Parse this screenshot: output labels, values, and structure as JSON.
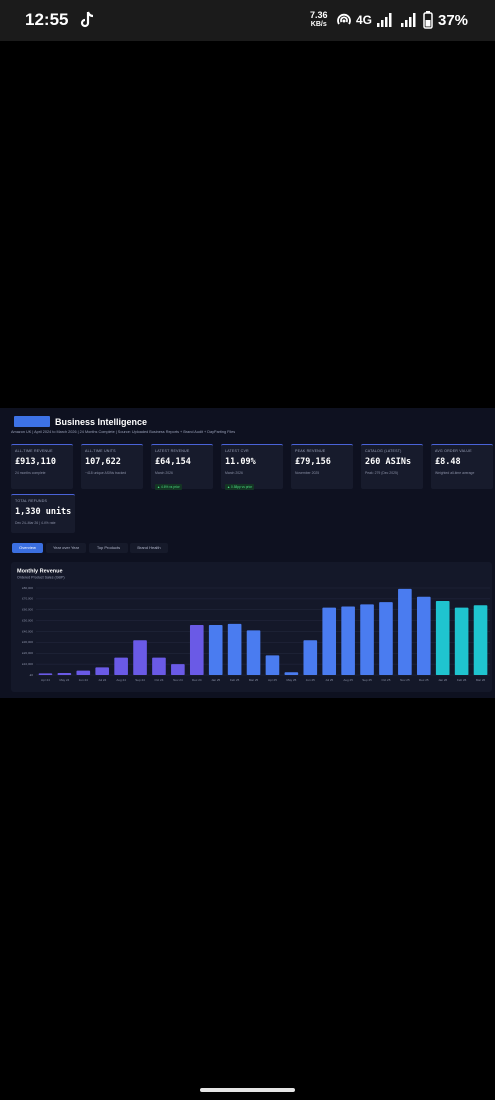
{
  "status_bar": {
    "time": "12:55",
    "speed": "7.36",
    "speed_unit": "KB/s",
    "network": "4G",
    "battery": "37%"
  },
  "header": {
    "title": "Business Intelligence",
    "subtitle": "Amazon UK | April 2024 to March 2026 | 24 Months Complete | Source: Uploaded Business Reports + Brand Audit + DayParting Files"
  },
  "cards": [
    {
      "label": "ALL-TIME REVENUE",
      "value": "£913,110",
      "note": "24 months complete"
    },
    {
      "label": "ALL-TIME UNITS",
      "value": "107,622",
      "note": "~418 unique ASINs tracked"
    },
    {
      "label": "LATEST REVENUE",
      "value": "£64,154",
      "note": "March 2026",
      "badge": "▲ 4.6% vs prior"
    },
    {
      "label": "LATEST CVR",
      "value": "11.09%",
      "note": "March 2026",
      "badge": "▲ 0.58pp vs prior"
    },
    {
      "label": "PEAK REVENUE",
      "value": "£79,156",
      "note": "November 2025"
    },
    {
      "label": "CATALOG (LATEST)",
      "value": "260 ASINs",
      "note": "Peak: 279 (Dec 2025)"
    },
    {
      "label": "AVG ORDER VALUE",
      "value": "£8.48",
      "note": "Weighted all-time average"
    },
    {
      "label": "TOTAL REFUNDS",
      "value": "1,330 units",
      "note": "Dec 24–Mar 26 | 4.4% rate"
    }
  ],
  "tabs": [
    "Overview",
    "Year over Year",
    "Top Products",
    "Brand Health"
  ],
  "chart_data": {
    "type": "bar",
    "title": "Monthly Revenue",
    "subtitle": "Ordered Product Sales (GBP)",
    "categories": [
      "Apr 24",
      "May 24",
      "Jun 24",
      "Jul 24",
      "Aug 24",
      "Sep 24",
      "Oct 24",
      "Nov 24",
      "Dec 24",
      "Jan 25",
      "Feb 25",
      "Mar 25",
      "Apr 25",
      "May 25",
      "Jun 25",
      "Jul 25",
      "Aug 25",
      "Sep 25",
      "Oct 25",
      "Nov 25",
      "Dec 25",
      "Jan 26",
      "Feb 26",
      "Mar 26"
    ],
    "values": [
      1500,
      1800,
      4000,
      7000,
      16000,
      32000,
      16000,
      10000,
      46000,
      46000,
      47000,
      41000,
      18000,
      2500,
      32000,
      62000,
      63000,
      65000,
      67000,
      79156,
      72000,
      68000,
      62000,
      64154
    ],
    "colors": [
      "#6a5ae6",
      "#6a5ae6",
      "#6a5ae6",
      "#6a5ae6",
      "#6a5ae6",
      "#6a5ae6",
      "#6a5ae6",
      "#6a5ae6",
      "#6a5ae6",
      "#4a7cf0",
      "#4a7cf0",
      "#4a7cf0",
      "#4a7cf0",
      "#4a7cf0",
      "#4a7cf0",
      "#4a7cf0",
      "#4a7cf0",
      "#4a7cf0",
      "#4a7cf0",
      "#4a7cf0",
      "#4a7cf0",
      "#1fc4cf",
      "#1fc4cf",
      "#1fc4cf"
    ],
    "ylim": [
      0,
      80000
    ],
    "yticks": [
      {
        "value": 0,
        "label": "£0"
      },
      {
        "value": 10000,
        "label": "£10,000"
      },
      {
        "value": 20000,
        "label": "£20,000"
      },
      {
        "value": 30000,
        "label": "£30,000"
      },
      {
        "value": 40000,
        "label": "£40,000"
      },
      {
        "value": 50000,
        "label": "£50,000"
      },
      {
        "value": 60000,
        "label": "£60,000"
      },
      {
        "value": 70000,
        "label": "£70,000"
      },
      {
        "value": 80000,
        "label": "£80,000"
      }
    ],
    "grid": true
  }
}
